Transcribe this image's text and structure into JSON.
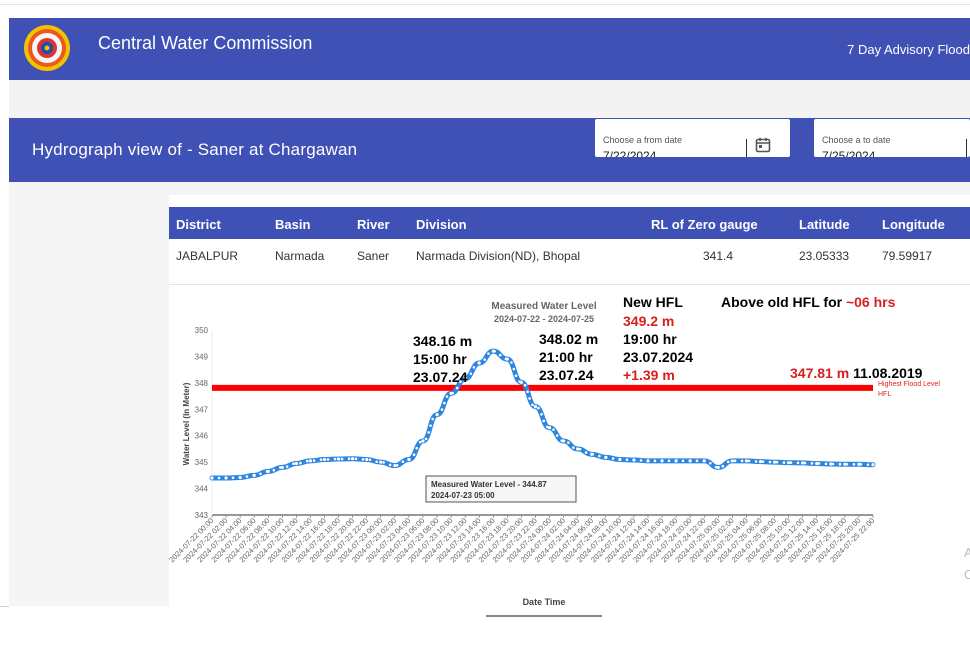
{
  "app": {
    "title": "Central Water Commission",
    "advisory_link": "7 Day Advisory Flood"
  },
  "header": {
    "title": "Hydrograph view of - Saner at Chargawan",
    "from_date": {
      "label": "Choose a from date",
      "value": "7/22/2024"
    },
    "to_date": {
      "label": "Choose a to date",
      "value": "7/25/2024"
    }
  },
  "station_table": {
    "columns": [
      "District",
      "Basin",
      "River",
      "Division",
      "RL of Zero gauge",
      "Latitude",
      "Longitude"
    ],
    "row": [
      "JABALPUR",
      "Narmada",
      "Saner",
      "Narmada Division(ND), Bhopal",
      "341.4",
      "23.05333",
      "79.59917"
    ]
  },
  "chart_data": {
    "type": "line",
    "title": "Measured Water Level",
    "subtitle": "2024-07-22 - 2024-07-25",
    "xlabel": "Date Time",
    "ylabel": "Water Level (In Meter)",
    "ylim": [
      343,
      350
    ],
    "yticks": [
      "350",
      "349",
      "348",
      "347",
      "346",
      "345",
      "344",
      "343"
    ],
    "x": [
      "2024-07-22 00:00",
      "2024-07-22 02:00",
      "2024-07-22 04:00",
      "2024-07-22 06:00",
      "2024-07-22 08:00",
      "2024-07-22 10:00",
      "2024-07-22 12:00",
      "2024-07-22 14:00",
      "2024-07-22 16:00",
      "2024-07-22 18:00",
      "2024-07-22 20:00",
      "2024-07-22 22:00",
      "2024-07-23 00:00",
      "2024-07-23 02:00",
      "2024-07-23 04:00",
      "2024-07-23 06:00",
      "2024-07-23 08:00",
      "2024-07-23 10:00",
      "2024-07-23 12:00",
      "2024-07-23 14:00",
      "2024-07-23 16:00",
      "2024-07-23 18:00",
      "2024-07-23 20:00",
      "2024-07-23 22:00",
      "2024-07-24 00:00",
      "2024-07-24 02:00",
      "2024-07-24 04:00",
      "2024-07-24 06:00",
      "2024-07-24 08:00",
      "2024-07-24 10:00",
      "2024-07-24 12:00",
      "2024-07-24 14:00",
      "2024-07-24 16:00",
      "2024-07-24 18:00",
      "2024-07-24 20:00",
      "2024-07-24 22:00",
      "2024-07-25 00:00",
      "2024-07-25 02:00",
      "2024-07-25 04:00",
      "2024-07-25 06:00",
      "2024-07-25 08:00",
      "2024-07-25 10:00",
      "2024-07-25 12:00",
      "2024-07-25 14:00",
      "2024-07-25 16:00",
      "2024-07-25 18:00",
      "2024-07-25 20:00",
      "2024-07-25 22:00"
    ],
    "series": [
      {
        "name": "Measured Water Level",
        "color": "#2e86de",
        "values": [
          344.4,
          344.4,
          344.42,
          344.5,
          344.65,
          344.8,
          344.95,
          345.05,
          345.1,
          345.12,
          345.13,
          345.1,
          345.0,
          344.87,
          345.1,
          345.8,
          346.8,
          347.6,
          348.16,
          348.75,
          349.2,
          348.9,
          348.02,
          347.1,
          346.3,
          345.8,
          345.5,
          345.3,
          345.18,
          345.1,
          345.08,
          345.05,
          345.05,
          345.05,
          345.05,
          345.05,
          344.8,
          345.05,
          345.05,
          345.02,
          345.0,
          344.98,
          344.97,
          344.95,
          344.93,
          344.92,
          344.92,
          344.9
        ]
      }
    ],
    "hfl": {
      "value": 347.81,
      "color": "#ff0000",
      "label_1": "Highest Flood Level",
      "label_2": "HFL"
    },
    "tooltip": {
      "line1": "Measured Water Level - 344.87",
      "line2": "2024-07-23 05:00"
    },
    "annotations": {
      "rise_start": [
        "348.16 m",
        "15:00 hr",
        "23.07.24"
      ],
      "fall": [
        "348.02 m",
        "21:00 hr",
        "23.07.24"
      ],
      "new_hfl_title": "New HFL",
      "new_hfl_value": "349.2 m",
      "new_hfl_time": "19:00 hr",
      "new_hfl_date": "23.07.2024",
      "new_hfl_diff": "+1.39 m",
      "above_old_prefix": "Above old HFL for ",
      "above_old_duration": "~06 hrs",
      "old_hfl_value": "347.81 m",
      "old_hfl_date": "11.08.2019"
    }
  },
  "colors": {
    "primary": "#3f51b5",
    "series": "#2e86de",
    "hfl": "#ff0000",
    "highlight_red": "#d81e1e"
  }
}
